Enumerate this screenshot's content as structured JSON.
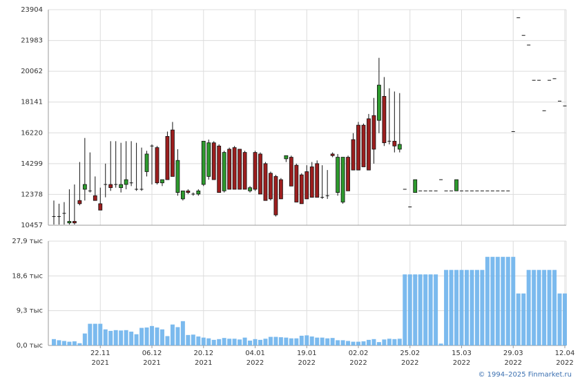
{
  "chart_data": [
    {
      "type": "candlestick",
      "categories": [
        null,
        null,
        null,
        null,
        null,
        null,
        null,
        null,
        null,
        "22.11",
        null,
        null,
        null,
        null,
        null,
        null,
        null,
        null,
        null,
        "06.12",
        null,
        null,
        null,
        null,
        null,
        null,
        null,
        null,
        null,
        "20.12",
        null,
        null,
        null,
        null,
        null,
        null,
        null,
        null,
        null,
        "04.01",
        null,
        null,
        null,
        null,
        null,
        null,
        null,
        null,
        null,
        "19.01",
        null,
        null,
        null,
        null,
        null,
        null,
        null,
        null,
        null,
        "02.02",
        null,
        null,
        null,
        null,
        null,
        null,
        null,
        null,
        null,
        "25.02",
        null,
        null,
        null,
        null,
        null,
        null,
        null,
        null,
        null,
        "15.03",
        null,
        null,
        null,
        null,
        null,
        null,
        null,
        null,
        null,
        "29.03",
        null,
        null,
        null,
        null,
        null,
        null,
        null,
        null,
        null,
        "12.04"
      ],
      "category_years": [
        null,
        null,
        null,
        null,
        null,
        null,
        null,
        null,
        null,
        "2021",
        null,
        null,
        null,
        null,
        null,
        null,
        null,
        null,
        null,
        "2021",
        null,
        null,
        null,
        null,
        null,
        null,
        null,
        null,
        null,
        "2021",
        null,
        null,
        null,
        null,
        null,
        null,
        null,
        null,
        null,
        "2022",
        null,
        null,
        null,
        null,
        null,
        null,
        null,
        null,
        null,
        "2022",
        null,
        null,
        null,
        null,
        null,
        null,
        null,
        null,
        null,
        "2022",
        null,
        null,
        null,
        null,
        null,
        null,
        null,
        null,
        null,
        "2022",
        null,
        null,
        null,
        null,
        null,
        null,
        null,
        null,
        null,
        "2022",
        null,
        null,
        null,
        null,
        null,
        null,
        null,
        null,
        null,
        "2022",
        null,
        null,
        null,
        null,
        null,
        null,
        null,
        null,
        null,
        "2022"
      ],
      "open": [
        11000,
        11000,
        11200,
        10600,
        10700,
        12000,
        12700,
        12600,
        12300,
        11800,
        13000,
        13000,
        13000,
        12800,
        13000,
        13100,
        12700,
        12700,
        13800,
        15400,
        15300,
        13100,
        16000,
        16400,
        12500,
        12100,
        12600,
        12400,
        12400,
        13000,
        13500,
        15600,
        15400,
        12600,
        15200,
        15300,
        15200,
        15000,
        12600,
        15000,
        14900,
        14300,
        13700,
        13500,
        13300,
        14600,
        14700,
        14200,
        13600,
        13800,
        14100,
        14300,
        12200,
        12300,
        14900,
        12500,
        11900,
        14700,
        15800,
        16700,
        16700,
        17100,
        17300,
        17000,
        18500,
        15700,
        15700,
        15200,
        12700,
        11600,
        12500,
        12600,
        12600,
        12600,
        12600,
        13300,
        12600,
        12600,
        12600,
        12600,
        12600,
        12600,
        12600,
        12600,
        12600,
        12600,
        12600,
        12600,
        12600,
        16300,
        23400,
        22300,
        21700,
        19500,
        19500,
        17600,
        19500,
        19600,
        18200,
        17900
      ],
      "high": [
        12000,
        11800,
        11900,
        12700,
        13000,
        14400,
        15900,
        15000,
        13500,
        12800,
        14300,
        15700,
        15700,
        15600,
        15700,
        15700,
        15600,
        15300,
        15100,
        15500,
        15400,
        13300,
        16300,
        16900,
        15200,
        12600,
        12700,
        12500,
        12700,
        15700,
        15800,
        15700,
        15500,
        15100,
        15300,
        15400,
        15200,
        15100,
        12900,
        15100,
        15000,
        14400,
        13800,
        13600,
        13400,
        14800,
        14800,
        14300,
        13700,
        14200,
        14400,
        14500,
        14200,
        13900,
        15000,
        14900,
        14700,
        14800,
        16200,
        16900,
        16800,
        17400,
        18400,
        20900,
        19700,
        19000,
        18800,
        18700,
        12700,
        11600,
        13300,
        12600,
        12600,
        12600,
        12600,
        13300,
        12600,
        12600,
        13300,
        12600,
        12600,
        12600,
        12600,
        12600,
        12600,
        12600,
        12600,
        12600,
        12600,
        16300,
        23400,
        22300,
        21700,
        19500,
        19500,
        17600,
        19500,
        19600,
        18200,
        17900
      ],
      "low": [
        10500,
        10500,
        10500,
        10500,
        10500,
        11700,
        12000,
        12500,
        12000,
        11500,
        12200,
        12600,
        12800,
        12500,
        12700,
        12900,
        12600,
        12600,
        13500,
        13000,
        13000,
        12900,
        13300,
        13500,
        12300,
        12000,
        12400,
        12300,
        12300,
        12900,
        13300,
        13300,
        12500,
        12500,
        12700,
        12700,
        12700,
        12700,
        12500,
        12600,
        12400,
        12000,
        12000,
        11000,
        12100,
        14400,
        12900,
        11900,
        11800,
        12100,
        12200,
        12200,
        12100,
        12100,
        14700,
        12300,
        11800,
        12600,
        13900,
        13900,
        14100,
        13900,
        14300,
        16200,
        15400,
        15500,
        15000,
        15000,
        12700,
        11600,
        12500,
        12600,
        12600,
        12600,
        12600,
        13300,
        12600,
        12600,
        12600,
        12600,
        12600,
        12600,
        12600,
        12600,
        12600,
        12600,
        12600,
        12600,
        12600,
        16300,
        23400,
        22300,
        21700,
        19500,
        19500,
        17600,
        19500,
        19600,
        18200,
        17900
      ],
      "close": [
        11000,
        11000,
        11200,
        10700,
        10600,
        11800,
        13000,
        12600,
        12000,
        11400,
        13000,
        12800,
        13000,
        13000,
        13300,
        13100,
        12700,
        12700,
        14900,
        15400,
        13100,
        13300,
        13300,
        13500,
        14500,
        12600,
        12500,
        12400,
        12600,
        15700,
        15600,
        13300,
        12500,
        15000,
        12700,
        12700,
        12700,
        12700,
        12800,
        12700,
        12400,
        12000,
        12100,
        11100,
        12100,
        14800,
        12900,
        11900,
        11800,
        12100,
        12200,
        12200,
        12200,
        12300,
        14800,
        14700,
        14700,
        12600,
        13900,
        13900,
        14100,
        13900,
        15200,
        19200,
        15600,
        15700,
        15400,
        15500,
        12700,
        11600,
        13300,
        12600,
        12600,
        12600,
        12600,
        13300,
        12600,
        12600,
        13300,
        12600,
        12600,
        12600,
        12600,
        12600,
        12600,
        12600,
        12600,
        12600,
        12600,
        16300,
        23400,
        22300,
        21700,
        19500,
        19500,
        17600,
        19500,
        19600,
        18200,
        17900
      ],
      "up_color": "#2e9a2e",
      "down_color": "#9c1e1e",
      "ylim": [
        10457,
        23904
      ],
      "yticks": [
        10457,
        12378,
        14299,
        16220,
        18141,
        20062,
        21983,
        23904
      ],
      "grid": true
    },
    {
      "type": "bar",
      "values": [
        1700,
        1400,
        1200,
        1000,
        1100,
        600,
        3200,
        5800,
        5800,
        5800,
        4300,
        3900,
        4100,
        4000,
        4100,
        3700,
        3000,
        4700,
        4800,
        5200,
        4800,
        4300,
        2500,
        5600,
        4900,
        6500,
        2800,
        2900,
        2400,
        2100,
        1900,
        1500,
        1700,
        2000,
        1800,
        1800,
        1600,
        2100,
        1300,
        1700,
        1500,
        1800,
        2300,
        2300,
        2200,
        2100,
        1900,
        1900,
        2600,
        2700,
        2400,
        2100,
        2100,
        1900,
        2000,
        1400,
        1400,
        1200,
        1000,
        1000,
        1100,
        1500,
        1700,
        900,
        1600,
        1800,
        1700,
        1800,
        19000,
        19000,
        19000,
        19000,
        19000,
        19000,
        19000,
        500,
        20200,
        20200,
        20200,
        20200,
        20200,
        20200,
        20200,
        20200,
        23700,
        23700,
        23700,
        23700,
        23700,
        23700,
        13900,
        13900,
        20200,
        20200,
        20200,
        20200,
        20200,
        20200,
        13900,
        13900
      ],
      "color": "#6db2ec",
      "ylim": [
        0,
        27900
      ],
      "yticks": [
        {
          "value": 0,
          "label": "0,0 тыс"
        },
        {
          "value": 9300,
          "label": "9,3 тыс"
        },
        {
          "value": 18600,
          "label": "18,6 тыс"
        },
        {
          "value": 27900,
          "label": "27,9 тыс"
        }
      ],
      "grid": true
    }
  ],
  "footer": "© 1994–2025 Finmarket.ru"
}
